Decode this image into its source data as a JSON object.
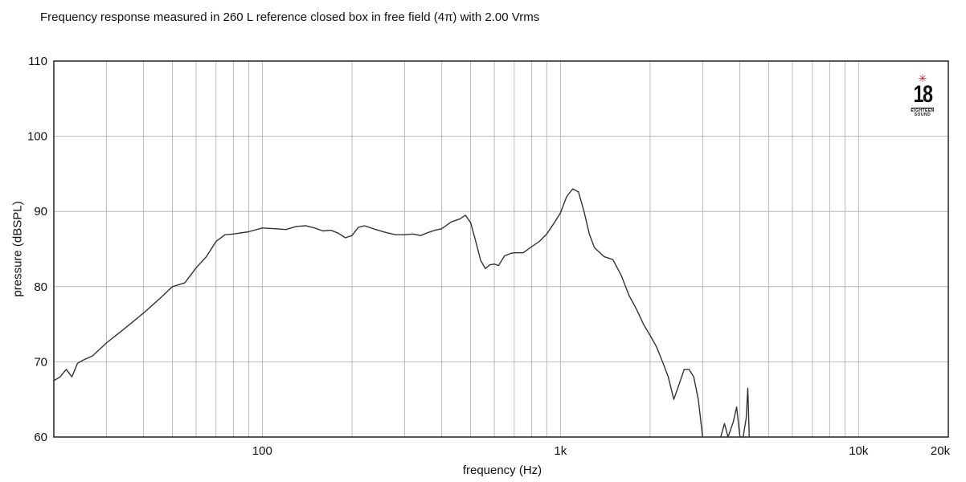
{
  "header": {
    "title": "Frequency response measured in 260 L reference closed box in free field (4π) with 2.00 Vrms"
  },
  "brand": {
    "logo_icon": "eighteen-sound-logo",
    "logo_number": "18",
    "logo_small_top": "EIGHTEEN",
    "logo_small_bottom": "SOUND",
    "accent": "#c8102e"
  },
  "chart_data": {
    "type": "line",
    "title": "Frequency response measured in 260 L reference closed box in free field (4π) with 2.00 Vrms",
    "xlabel": "frequency (Hz)",
    "ylabel": "pressure (dBSPL)",
    "xscale": "log",
    "xlim": [
      20,
      20000
    ],
    "ylim": [
      60,
      110
    ],
    "grid": true,
    "y_ticks": [
      60,
      70,
      80,
      90,
      100,
      110
    ],
    "x_ticks": [
      {
        "value": 100,
        "label": "100"
      },
      {
        "value": 1000,
        "label": "1k"
      },
      {
        "value": 10000,
        "label": "10k"
      },
      {
        "value": 20000,
        "label": "20k"
      }
    ],
    "x_grid": [
      30,
      40,
      50,
      60,
      70,
      80,
      90,
      100,
      200,
      300,
      400,
      500,
      600,
      700,
      800,
      900,
      1000,
      2000,
      3000,
      4000,
      5000,
      6000,
      7000,
      8000,
      9000,
      10000
    ],
    "series": [
      {
        "color": "#333333",
        "x": [
          20,
          21,
          22,
          23,
          24,
          25,
          27,
          30,
          33,
          36,
          40,
          45,
          50,
          55,
          60,
          65,
          70,
          75,
          80,
          90,
          100,
          110,
          120,
          130,
          140,
          150,
          160,
          170,
          180,
          190,
          200,
          210,
          220,
          240,
          260,
          280,
          300,
          320,
          340,
          360,
          380,
          400,
          430,
          460,
          480,
          500,
          520,
          540,
          560,
          580,
          600,
          620,
          650,
          680,
          700,
          750,
          800,
          850,
          900,
          950,
          1000,
          1050,
          1100,
          1150,
          1200,
          1250,
          1300,
          1400,
          1500,
          1600,
          1700,
          1800,
          1900,
          2000,
          2100,
          2200,
          2300,
          2400,
          2500,
          2600,
          2700,
          2800,
          2900,
          3000
        ],
        "y": [
          67.5,
          68.0,
          69.0,
          68.0,
          69.8,
          70.2,
          70.8,
          72.5,
          73.8,
          75.0,
          76.5,
          78.3,
          80.0,
          80.5,
          82.5,
          84.0,
          86.0,
          86.9,
          87.0,
          87.3,
          87.8,
          87.7,
          87.6,
          88.0,
          88.1,
          87.8,
          87.4,
          87.5,
          87.1,
          86.5,
          86.8,
          87.9,
          88.1,
          87.6,
          87.2,
          86.9,
          86.9,
          87.0,
          86.8,
          87.2,
          87.5,
          87.7,
          88.6,
          89.0,
          89.5,
          88.5,
          86.0,
          83.5,
          82.4,
          82.9,
          83.0,
          82.8,
          84.1,
          84.4,
          84.5,
          84.5,
          85.3,
          86.0,
          87.0,
          88.4,
          89.8,
          92.0,
          93.0,
          92.6,
          90.0,
          87.0,
          85.2,
          84.0,
          83.6,
          81.5,
          78.8,
          77.0,
          75.0,
          73.5,
          72.0,
          70.0,
          68.0,
          65.0,
          67.0,
          69.0,
          69.0,
          68.0,
          65.0,
          60.0
        ]
      },
      {
        "color": "#333333",
        "x": [
          3450,
          3550,
          3650,
          3800,
          3900,
          4000,
          4050,
          4100,
          4200,
          4250,
          4300
        ],
        "y": [
          60.0,
          61.8,
          60.0,
          62.0,
          64.0,
          60.0,
          60.0,
          60.0,
          62.5,
          66.5,
          60.0
        ]
      }
    ]
  }
}
